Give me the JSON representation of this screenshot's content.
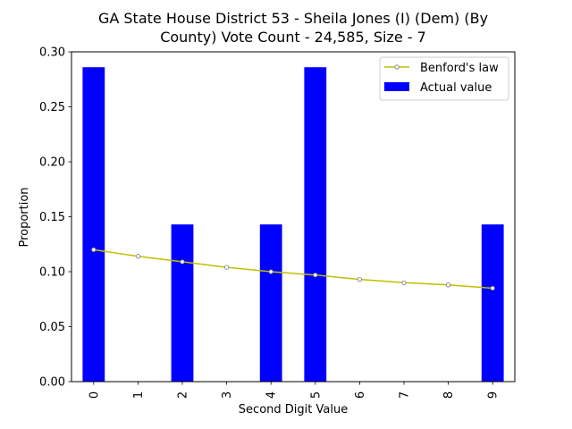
{
  "chart_data": {
    "type": "bar",
    "title_lines": [
      "GA State House District 53 - Sheila Jones (I) (Dem) (By",
      "County) Vote Count - 24,585, Size - 7"
    ],
    "xlabel": "Second Digit Value",
    "ylabel": "Proportion",
    "categories": [
      "0",
      "1",
      "2",
      "3",
      "4",
      "5",
      "6",
      "7",
      "8",
      "9"
    ],
    "ylim": [
      0,
      0.3
    ],
    "yticks": [
      "0.00",
      "0.05",
      "0.10",
      "0.15",
      "0.20",
      "0.25",
      "0.30"
    ],
    "grid": false,
    "legend_position": "top-right",
    "series": [
      {
        "name": "Benford's law",
        "kind": "line",
        "color": "#bfbf00",
        "values": [
          0.12,
          0.114,
          0.109,
          0.104,
          0.1,
          0.097,
          0.093,
          0.09,
          0.088,
          0.085
        ]
      },
      {
        "name": "Actual value",
        "kind": "bar",
        "color": "#0000ff",
        "values": [
          0.286,
          0,
          0.143,
          0,
          0.143,
          0.286,
          0,
          0,
          0,
          0.143
        ]
      }
    ]
  }
}
